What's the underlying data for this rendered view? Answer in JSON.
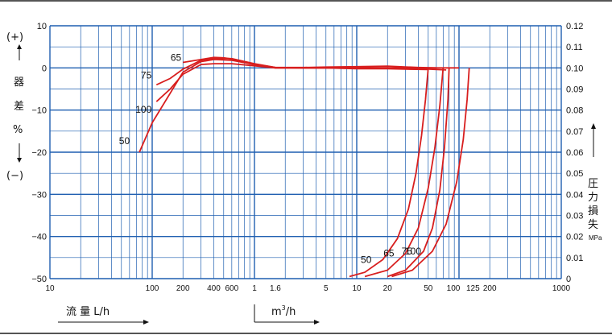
{
  "chart_data": {
    "type": "line",
    "x_scale": "log",
    "grid": true,
    "x_ticks_lh": [
      "10",
      "100",
      "200",
      "400",
      "600"
    ],
    "x_ticks_m3h": [
      "1",
      "1.6",
      "5",
      "10",
      "20",
      "50",
      "100",
      "125",
      "200",
      "1000"
    ],
    "x_label_lh": "流 量 L/h",
    "x_label_m3h_base": "m",
    "x_label_m3h_sup": "3",
    "x_label_m3h_rest": "/h",
    "left_axis": {
      "ticks": [
        "10",
        "0",
        "−10",
        "−20",
        "−30",
        "−40",
        "−50"
      ],
      "ylim": [
        -50,
        10
      ],
      "top_sign": "(+)",
      "bottom_sign": "(−)",
      "label_chars": [
        "器",
        "差",
        "%"
      ]
    },
    "right_axis": {
      "ticks": [
        "0.12",
        "0.11",
        "0.10",
        "0.09",
        "0.08",
        "0.07",
        "0.06",
        "0.05",
        "0.04",
        "0.03",
        "0.02",
        "0.01",
        "0"
      ],
      "ylim": [
        0,
        0.12
      ],
      "label_chars": [
        "圧",
        "力",
        "損",
        "失"
      ],
      "unit": "MPa"
    },
    "error_curves": [
      {
        "name": "50",
        "x_m3h": [
          0.075,
          0.1,
          0.15,
          0.2,
          0.3,
          0.4,
          0.6,
          1,
          1.6,
          3,
          5,
          10,
          20,
          50
        ],
        "y_pct": [
          -20,
          -13,
          -6,
          -1,
          1.5,
          2,
          1.8,
          0.8,
          0,
          0,
          0,
          -0.2,
          -0.2,
          -0.4
        ]
      },
      {
        "name": "100",
        "x_m3h": [
          0.11,
          0.15,
          0.2,
          0.3,
          0.4,
          0.6,
          1,
          1.6,
          3,
          5,
          10,
          20,
          50,
          100
        ],
        "y_pct": [
          -8,
          -5,
          -1.5,
          0.8,
          1,
          1,
          0.5,
          0,
          0,
          0,
          0,
          0,
          0,
          0
        ]
      },
      {
        "name": "75",
        "x_m3h": [
          0.11,
          0.15,
          0.2,
          0.3,
          0.4,
          0.6,
          1,
          1.6,
          3,
          5,
          10,
          20,
          50,
          75
        ],
        "y_pct": [
          -4,
          -2.5,
          -0.3,
          1.8,
          2.3,
          2.2,
          1,
          0.1,
          0,
          0,
          0,
          0,
          -0.3,
          -0.5
        ]
      },
      {
        "name": "65",
        "x_m3h": [
          0.2,
          0.3,
          0.4,
          0.5,
          0.6,
          1,
          1.6,
          3,
          5,
          10,
          20,
          40,
          60
        ],
        "y_pct": [
          1.3,
          2,
          2.5,
          2.4,
          2.1,
          0.9,
          0.1,
          0.1,
          0.2,
          0.3,
          0.4,
          0.1,
          0
        ]
      }
    ],
    "pressure_loss_curves": [
      {
        "name": "50",
        "x_m3h": [
          8.5,
          12,
          18,
          25,
          32,
          38,
          43,
          47,
          50
        ],
        "y_mpa": [
          0.001,
          0.003,
          0.009,
          0.019,
          0.033,
          0.05,
          0.068,
          0.085,
          0.1
        ]
      },
      {
        "name": "65",
        "x_m3h": [
          12,
          20,
          30,
          40,
          50,
          58,
          65,
          70
        ],
        "y_mpa": [
          0.001,
          0.004,
          0.012,
          0.024,
          0.043,
          0.062,
          0.082,
          0.1
        ]
      },
      {
        "name": "75",
        "x_m3h": [
          20,
          30,
          45,
          55,
          65,
          72,
          78,
          80
        ],
        "y_mpa": [
          0.001,
          0.004,
          0.013,
          0.024,
          0.042,
          0.062,
          0.085,
          0.1
        ]
      },
      {
        "name": "100",
        "x_m3h": [
          22,
          35,
          55,
          75,
          95,
          110,
          120,
          126
        ],
        "y_mpa": [
          0.001,
          0.004,
          0.013,
          0.026,
          0.046,
          0.066,
          0.085,
          0.1
        ]
      }
    ]
  }
}
